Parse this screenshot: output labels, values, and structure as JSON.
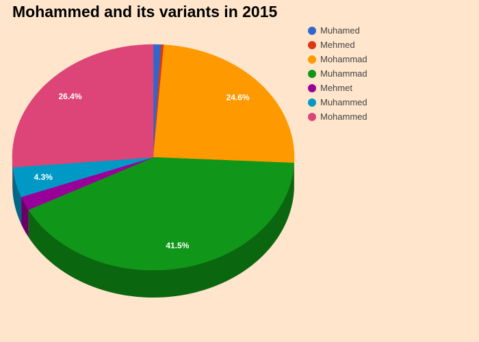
{
  "chart_data": {
    "type": "pie",
    "title": "Mohammed and its variants in 2015",
    "slices": [
      {
        "label": "Muhamed",
        "value": 0.9,
        "color": "#3366cc",
        "label_text": ""
      },
      {
        "label": "Mehmed",
        "value": 0.3,
        "color": "#dc3912",
        "label_text": ""
      },
      {
        "label": "Mohammad",
        "value": 24.6,
        "color": "#ff9900",
        "label_text": "24.6%"
      },
      {
        "label": "Muhammad",
        "value": 41.5,
        "color": "#109618",
        "label_text": "41.5%"
      },
      {
        "label": "Mehmet",
        "value": 2.0,
        "color": "#990099",
        "label_text": ""
      },
      {
        "label": "Muhammed",
        "value": 4.3,
        "color": "#0099c6",
        "label_text": "4.3%"
      },
      {
        "label": "Mohammed",
        "value": 26.4,
        "color": "#dd4477",
        "label_text": "26.4%"
      }
    ],
    "legend_position": "top-right",
    "style": "3d"
  }
}
